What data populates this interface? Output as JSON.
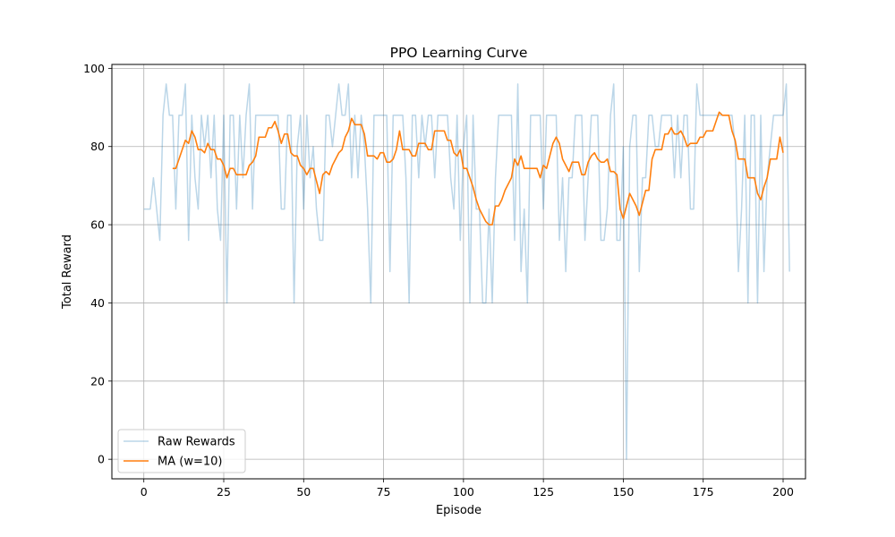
{
  "chart_data": {
    "type": "line",
    "title": "PPO Learning Curve",
    "xlabel": "Episode",
    "ylabel": "Total Reward",
    "xlim": [
      -10,
      207
    ],
    "ylim": [
      -5,
      101
    ],
    "xticks": [
      0,
      25,
      50,
      75,
      100,
      125,
      150,
      175,
      200
    ],
    "yticks": [
      0,
      20,
      40,
      60,
      80,
      100
    ],
    "grid": true,
    "legend_position": "lower-left",
    "colors": {
      "raw": "#1f77b4",
      "ma": "#ff7f0e",
      "grid": "#b0b0b0"
    },
    "series": [
      {
        "name": "Raw Rewards",
        "x_start": 0,
        "values": [
          64,
          64,
          64,
          72,
          64,
          56,
          88,
          96,
          88,
          88,
          64,
          88,
          88,
          96,
          56,
          88,
          72,
          64,
          88,
          80,
          88,
          72,
          88,
          64,
          56,
          88,
          40,
          88,
          88,
          64,
          88,
          72,
          88,
          96,
          64,
          88,
          88,
          88,
          88,
          88,
          88,
          88,
          88,
          64,
          64,
          88,
          88,
          40,
          80,
          88,
          64,
          88,
          72,
          80,
          64,
          56,
          56,
          88,
          88,
          80,
          88,
          96,
          88,
          88,
          96,
          72,
          88,
          72,
          88,
          80,
          64,
          40,
          88,
          88,
          88,
          88,
          88,
          48,
          88,
          88,
          88,
          88,
          72,
          40,
          88,
          88,
          72,
          88,
          80,
          88,
          88,
          72,
          88,
          88,
          88,
          88,
          72,
          64,
          88,
          56,
          80,
          88,
          40,
          88,
          64,
          64,
          40,
          40,
          64,
          40,
          72,
          88,
          88,
          88,
          88,
          88,
          56,
          96,
          48,
          64,
          40,
          88,
          88,
          88,
          88,
          64,
          88,
          88,
          88,
          88,
          56,
          72,
          48,
          72,
          72,
          88,
          88,
          88,
          56,
          72,
          88,
          88,
          88,
          56,
          56,
          64,
          88,
          96,
          56,
          56,
          80,
          0,
          80,
          88,
          88,
          48,
          72,
          72,
          88,
          88,
          80,
          80,
          88,
          88,
          88,
          88,
          72,
          88,
          72,
          88,
          88,
          64,
          64,
          96,
          88,
          88,
          88,
          88,
          88,
          88,
          88,
          88,
          88,
          88,
          88,
          80,
          48,
          64,
          88,
          40,
          88,
          88,
          40,
          88,
          48,
          72,
          80,
          88,
          88,
          88,
          88,
          96,
          48
        ]
      },
      {
        "name": "MA (w=10)",
        "x_start": 9,
        "values": [
          74.4,
          74.4,
          76.8,
          79.2,
          81.6,
          80.8,
          84,
          82.4,
          79.2,
          79.2,
          78.4,
          80.8,
          79.2,
          79.2,
          76.8,
          76.8,
          75.2,
          72,
          74.4,
          74.4,
          72.8,
          72.8,
          72.8,
          72.8,
          75.2,
          76,
          77.6,
          82.4,
          82.4,
          82.4,
          84.8,
          84.8,
          86.4,
          84,
          80.8,
          83.2,
          83.2,
          78.4,
          77.6,
          77.6,
          75.2,
          74.4,
          72.8,
          74.4,
          74.4,
          71.2,
          68,
          72.8,
          73.6,
          72.8,
          75.2,
          76.8,
          78.4,
          79.2,
          82.4,
          84,
          87.2,
          85.6,
          85.6,
          85.6,
          83.2,
          77.6,
          77.6,
          77.6,
          76.8,
          78.4,
          78.4,
          76,
          76,
          76.8,
          79.2,
          84,
          79.2,
          79.2,
          79.2,
          77.6,
          77.6,
          80.8,
          80.8,
          80.8,
          79.2,
          79.2,
          84,
          84,
          84,
          84,
          81.6,
          81.6,
          78.4,
          77.6,
          79.2,
          74.4,
          74.4,
          72,
          69.6,
          66.4,
          64,
          62.4,
          60.8,
          60,
          60,
          64.8,
          64.8,
          66.4,
          68.8,
          70.4,
          72,
          76.8,
          75.2,
          77.6,
          74.4,
          74.4,
          74.4,
          74.4,
          74.4,
          72,
          75.2,
          74.4,
          77.6,
          80.8,
          82.4,
          80.8,
          76.8,
          75.2,
          73.6,
          76,
          76,
          76,
          72.8,
          72.8,
          76,
          77.6,
          78.4,
          76.8,
          76,
          76,
          76.8,
          73.6,
          73.6,
          72.8,
          64,
          61.6,
          64.8,
          68,
          66.4,
          64.8,
          62.4,
          65.6,
          68.8,
          68.8,
          76.8,
          79.2,
          79.2,
          79.2,
          83.2,
          83.2,
          84.8,
          83.2,
          83.2,
          84,
          82.4,
          80,
          80.8,
          80.8,
          80.8,
          82.4,
          82.4,
          84,
          84,
          84,
          86.4,
          88.8,
          88,
          88,
          88,
          84,
          81.6,
          76.8,
          76.8,
          76.8,
          72,
          72,
          72,
          68,
          66.4,
          69.6,
          72,
          76.8,
          76.8,
          76.8,
          82.4,
          78.4
        ]
      }
    ]
  }
}
